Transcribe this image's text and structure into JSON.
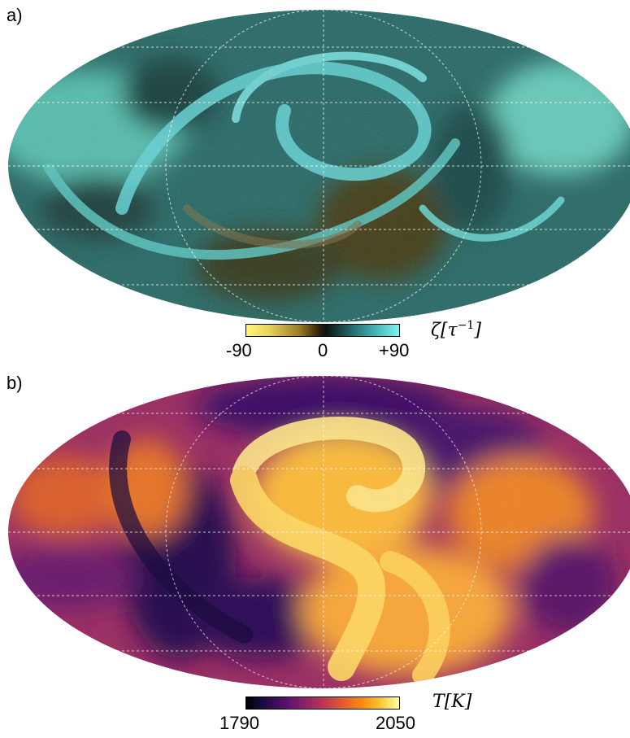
{
  "panels": [
    {
      "label": "a)",
      "colorbar": {
        "ticks": [
          "-90",
          "0",
          "+90"
        ],
        "title_symbol": "ζ",
        "title_unit": "[τ",
        "title_exp": "−1",
        "title_close": "]",
        "colors": [
          "#fff77a",
          "#9b7a22",
          "#0b1414",
          "#3aa9ad",
          "#7ef3f4"
        ]
      }
    },
    {
      "label": "b)",
      "colorbar": {
        "ticks": [
          "1790",
          "2050"
        ],
        "title_symbol": "T",
        "title_unit": "[K]",
        "colors": [
          "#000004",
          "#550f6d",
          "#ba3655",
          "#f98e09",
          "#fcffa4"
        ]
      }
    }
  ]
}
